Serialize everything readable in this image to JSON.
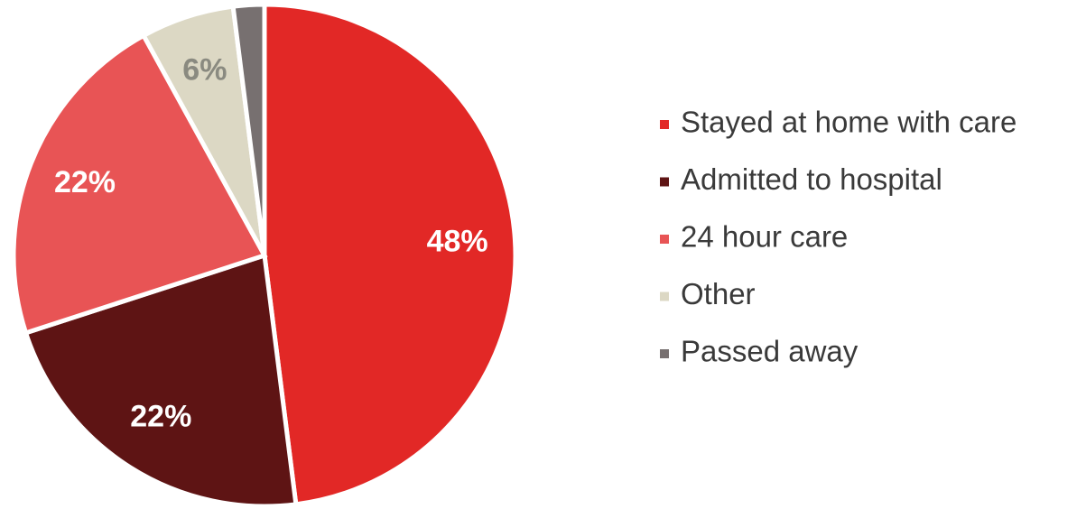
{
  "chart_data": {
    "type": "pie",
    "categories": [
      "Stayed at home with care",
      "Admitted to hospital",
      "24 hour care",
      "Other",
      "Passed away"
    ],
    "values": [
      48,
      22,
      22,
      6,
      2
    ],
    "value_labels": [
      "48%",
      "22%",
      "22%",
      "6%",
      null
    ],
    "colors": [
      "#e22826",
      "#5e1414",
      "#e85455",
      "#dcd8c4",
      "#777070"
    ],
    "legend": "right"
  }
}
